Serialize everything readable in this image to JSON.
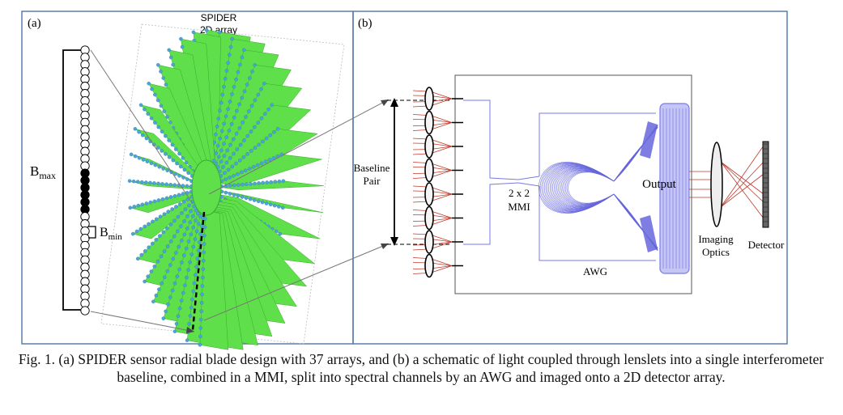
{
  "panel_a": {
    "label": "(a)",
    "array_title_line1": "SPIDER",
    "array_title_line2": "2D array",
    "bmax_base": "B",
    "bmax_sub": "max",
    "bmin_base": "B",
    "bmin_sub": "min",
    "blade_count": 37,
    "lenslet_count": 37,
    "filled_lenslets": [
      17,
      18,
      19,
      20,
      21,
      22
    ],
    "colors": {
      "blade": "#5fe04a",
      "blade_dark": "#3aa82c",
      "lenslet": "#4aa6d8",
      "bracket": "#000000"
    }
  },
  "panel_b": {
    "label": "(b)",
    "baseline_line1": "Baseline",
    "baseline_line2": "Pair",
    "mmi_line1": "2 x 2",
    "mmi_line2": "MMI",
    "output_label": "Output",
    "awg_label": "AWG",
    "imaging_line1": "Imaging",
    "imaging_line2": "Optics",
    "detector_label": "Detector",
    "lens_count": 8,
    "colors": {
      "waveguide": "#7a7ae8",
      "awg_fill": "#6666dd",
      "output_block": "#b8b8f2",
      "rays": "#c0392b",
      "frame": "#555555"
    }
  },
  "caption": "Fig. 1. (a) SPIDER sensor radial blade design with 37 arrays, and (b) a schematic of light coupled through lenslets into a single interferometer baseline, combined in a MMI, split into spectral channels by an AWG and imaged onto a 2D detector array."
}
